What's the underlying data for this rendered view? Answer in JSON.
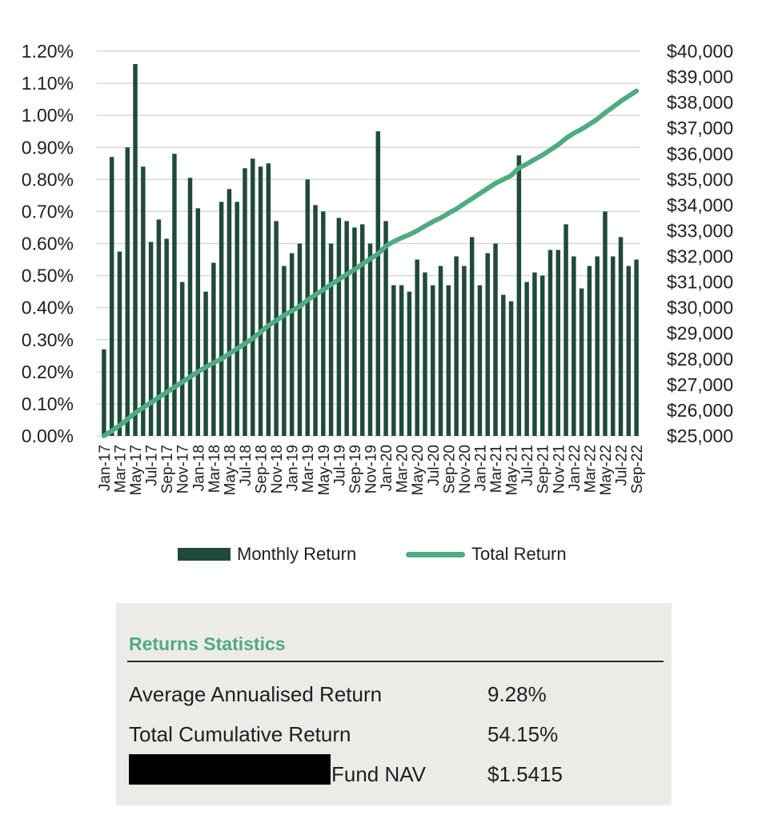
{
  "colors": {
    "bar": "#1f4a3c",
    "line": "#4fab80",
    "grid": "#d9d9d9",
    "stats_bg": "#edebe7",
    "stats_title": "#4fab80"
  },
  "chart_data": {
    "type": "bar+line",
    "title": "",
    "xlabel": "",
    "ylabel": "",
    "y_left_ticks": [
      "0.00%",
      "0.10%",
      "0.20%",
      "0.30%",
      "0.40%",
      "0.50%",
      "0.60%",
      "0.70%",
      "0.80%",
      "0.90%",
      "1.00%",
      "1.10%",
      "1.20%"
    ],
    "y_left_range": [
      0,
      1.2
    ],
    "y_right_ticks": [
      "$25,000",
      "$26,000",
      "$27,000",
      "$28,000",
      "$29,000",
      "$30,000",
      "$31,000",
      "$32,000",
      "$33,000",
      "$34,000",
      "$35,000",
      "$36,000",
      "$37,000",
      "$38,000",
      "$39,000",
      "$40,000"
    ],
    "y_right_range": [
      25000,
      40000
    ],
    "x_tick_labels": [
      "Jan-17",
      "Mar-17",
      "May-17",
      "Jul-17",
      "Sep-17",
      "Nov-17",
      "Jan-18",
      "Mar-18",
      "May-18",
      "Jul-18",
      "Sep-18",
      "Nov-18",
      "Jan-19",
      "Mar-19",
      "May-19",
      "Jul-19",
      "Sep-19",
      "Nov-19",
      "Jan-20",
      "Mar-20",
      "May-20",
      "Jul-20",
      "Sep-20",
      "Nov-20",
      "Jan-21",
      "Mar-21",
      "May-21",
      "Jul-21",
      "Sep-21",
      "Nov-21",
      "Jan-22",
      "Mar-22",
      "May-22",
      "Jul-22",
      "Sep-22"
    ],
    "legend_position": "bottom-center",
    "series": [
      {
        "name": "Monthly Return",
        "type": "bar",
        "axis": "left",
        "unit": "%",
        "values": [
          0.27,
          0.87,
          0.575,
          0.9,
          1.16,
          0.84,
          0.605,
          0.675,
          0.615,
          0.88,
          0.48,
          0.805,
          0.71,
          0.45,
          0.54,
          0.73,
          0.77,
          0.73,
          0.835,
          0.865,
          0.84,
          0.85,
          0.67,
          0.53,
          0.57,
          0.6,
          0.8,
          0.72,
          0.7,
          0.6,
          0.68,
          0.67,
          0.65,
          0.66,
          0.6,
          0.95,
          0.67,
          0.47,
          0.47,
          0.45,
          0.55,
          0.51,
          0.47,
          0.53,
          0.47,
          0.56,
          0.53,
          0.62,
          0.47,
          0.57,
          0.6,
          0.44,
          0.42,
          0.875,
          0.48,
          0.51,
          0.5,
          0.58,
          0.58,
          0.66,
          0.56,
          0.46,
          0.53,
          0.56,
          0.7,
          0.56,
          0.62,
          0.53,
          0.55
        ]
      },
      {
        "name": "Total Return",
        "type": "line",
        "axis": "right",
        "unit": "$",
        "values": [
          25000,
          25200,
          25400,
          25650,
          25900,
          26100,
          26300,
          26500,
          26700,
          26900,
          27100,
          27300,
          27500,
          27680,
          27850,
          28000,
          28200,
          28400,
          28600,
          28800,
          29050,
          29300,
          29500,
          29700,
          29880,
          30050,
          30300,
          30500,
          30700,
          30900,
          31100,
          31300,
          31480,
          31700,
          31900,
          32100,
          32400,
          32580,
          32720,
          32850,
          33000,
          33180,
          33350,
          33500,
          33680,
          33850,
          34050,
          34250,
          34450,
          34650,
          34850,
          35000,
          35150,
          35450,
          35600,
          35780,
          35950,
          36150,
          36350,
          36600,
          36800,
          36960,
          37150,
          37350,
          37600,
          37820,
          38050,
          38250,
          38450
        ]
      }
    ]
  },
  "legend": {
    "monthly_label": "Monthly Return",
    "total_label": "Total Return"
  },
  "stats": {
    "title": "Returns Statistics",
    "rows": [
      {
        "label": "Average Annualised Return",
        "value": "9.28%"
      },
      {
        "label": "Total Cumulative Return",
        "value": "54.15%"
      },
      {
        "label": "Fund NAV",
        "value": "$1.5415"
      }
    ]
  }
}
